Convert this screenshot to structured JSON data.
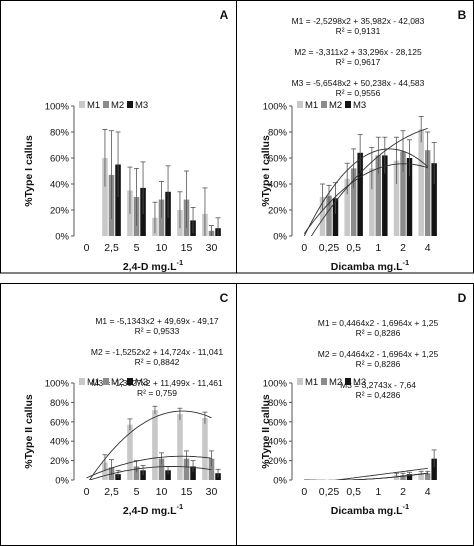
{
  "colors": {
    "M1": "#c8c8c8",
    "M2": "#8c8c8c",
    "M3": "#141414",
    "error_bar": "#555555",
    "trend": "#333333",
    "axis": "#555555",
    "frame": "#000000"
  },
  "chart_data": [
    {
      "type": "bar",
      "panel_letter": "A",
      "categories": [
        "0",
        "2,5",
        "5",
        "10",
        "15",
        "30"
      ],
      "series": [
        {
          "name": "M1",
          "values": [
            0,
            60,
            35,
            14,
            20,
            17
          ],
          "errors": [
            0,
            22,
            18,
            12,
            14,
            20
          ]
        },
        {
          "name": "M2",
          "values": [
            0,
            47,
            30,
            28,
            28,
            4
          ],
          "errors": [
            0,
            34,
            22,
            14,
            22,
            4
          ]
        },
        {
          "name": "M3",
          "values": [
            0,
            55,
            37,
            34,
            12,
            6
          ],
          "errors": [
            0,
            25,
            20,
            20,
            10,
            8
          ]
        }
      ],
      "xlabel": "2,4-D mg.L",
      "xlabel_sup": "-1",
      "ylabel": "%Type I callus",
      "ylim": [
        0,
        100
      ],
      "yticks": [
        "0%",
        "20%",
        "40%",
        "60%",
        "80%",
        "100%"
      ],
      "legend": [
        "M1",
        "M2",
        "M3"
      ],
      "legend_position": "top-left",
      "equations": [],
      "trendlines": []
    },
    {
      "type": "bar",
      "panel_letter": "B",
      "categories": [
        "0",
        "0,25",
        "0,5",
        "1",
        "2",
        "4"
      ],
      "series": [
        {
          "name": "M1",
          "values": [
            0,
            30,
            44,
            52,
            58,
            82
          ],
          "errors": [
            0,
            10,
            12,
            16,
            18,
            10
          ]
        },
        {
          "name": "M2",
          "values": [
            0,
            31,
            52,
            62,
            65,
            66
          ],
          "errors": [
            0,
            8,
            15,
            14,
            16,
            14
          ]
        },
        {
          "name": "M3",
          "values": [
            0,
            29,
            64,
            62,
            60,
            56
          ],
          "errors": [
            0,
            12,
            14,
            14,
            14,
            16
          ]
        }
      ],
      "xlabel": "Dicamba mg.L",
      "xlabel_sup": "-1",
      "ylabel": "%Type I callus",
      "ylim": [
        0,
        100
      ],
      "yticks": [
        "0%",
        "20%",
        "40%",
        "60%",
        "80%",
        "100%"
      ],
      "legend": [
        "M1",
        "M2",
        "M3"
      ],
      "legend_position": "top-left",
      "equations": [
        {
          "line1": "M1 = -2,5298x2 + 35,982x - 42,083",
          "line2": "R² = 0,9131"
        },
        {
          "line1": "M2 = -3,311x2 + 33,296x - 28,125",
          "line2": "R² = 0,9617"
        },
        {
          "line1": "M3 = -5,6548x2 + 50,238x - 44,583",
          "line2": "R² = 0,9556"
        }
      ],
      "trendlines": [
        {
          "series": "M1",
          "a": -2.5298,
          "b": 35.982,
          "c": -42.083
        },
        {
          "series": "M2",
          "a": -3.311,
          "b": 33.296,
          "c": -28.125
        },
        {
          "series": "M3",
          "a": -5.6548,
          "b": 50.238,
          "c": -44.583
        }
      ]
    },
    {
      "type": "bar",
      "panel_letter": "C",
      "categories": [
        "0",
        "2,5",
        "5",
        "10",
        "15",
        "30"
      ],
      "series": [
        {
          "name": "M1",
          "values": [
            0,
            18,
            57,
            72,
            68,
            64
          ],
          "errors": [
            0,
            8,
            6,
            4,
            6,
            6
          ]
        },
        {
          "name": "M2",
          "values": [
            0,
            13,
            14,
            22,
            22,
            22
          ],
          "errors": [
            0,
            8,
            6,
            6,
            8,
            8
          ]
        },
        {
          "name": "M3",
          "values": [
            0,
            6,
            10,
            10,
            14,
            7
          ],
          "errors": [
            0,
            4,
            5,
            4,
            6,
            4
          ]
        }
      ],
      "xlabel": "2,4-D mg.L",
      "xlabel_sup": "-1",
      "ylabel": "%Type II callus",
      "ylim": [
        0,
        100
      ],
      "yticks": [
        "0%",
        "20%",
        "40%",
        "60%",
        "80%",
        "100%"
      ],
      "legend": [
        "M1",
        "M2",
        "M3"
      ],
      "legend_position": "top-left",
      "equations": [
        {
          "line1": "M1 = -5,1343x2 + 49,69x - 49,17",
          "line2": "R² = 0,9533"
        },
        {
          "line1": "M2 = -1,5252x2 + 14,724x - 11,041",
          "line2": "R² = 0,8842"
        },
        {
          "line1": "M3 = -1,3027x2 + 11,499x - 11,461",
          "line2": "R² = 0,759"
        }
      ],
      "trendlines": [
        {
          "series": "M1",
          "a": -5.1343,
          "b": 49.69,
          "c": -49.17
        },
        {
          "series": "M2",
          "a": -1.5252,
          "b": 14.724,
          "c": -11.041
        },
        {
          "series": "M3",
          "a": -1.3027,
          "b": 11.499,
          "c": -11.461
        }
      ]
    },
    {
      "type": "bar",
      "panel_letter": "D",
      "categories": [
        "0",
        "0,25",
        "0,5",
        "1",
        "2",
        "4"
      ],
      "series": [
        {
          "name": "M1",
          "values": [
            0,
            0,
            0,
            0,
            5,
            7
          ],
          "errors": [
            0,
            0,
            0,
            0,
            2,
            2
          ]
        },
        {
          "name": "M2",
          "values": [
            0,
            0,
            0,
            0,
            5,
            7
          ],
          "errors": [
            0,
            0,
            0,
            0,
            2,
            2
          ]
        },
        {
          "name": "M3",
          "values": [
            0,
            0,
            0,
            0,
            6,
            22
          ],
          "errors": [
            0,
            0,
            0,
            0,
            2,
            9
          ]
        }
      ],
      "xlabel": "Dicamba mg.L",
      "xlabel_sup": "-1",
      "ylabel": "%Type II callus",
      "ylim": [
        0,
        100
      ],
      "yticks": [
        "0%",
        "20%",
        "40%",
        "60%",
        "80%",
        "100%"
      ],
      "legend": [
        "M1",
        "M2",
        "M3"
      ],
      "legend_position": "top-left",
      "equations": [
        {
          "line1": "M1 = 0,4464x2 - 1,6964x + 1,25",
          "line2": "R² = 0,8286"
        },
        {
          "line1": "M2 = 0,4464x2 - 1,6964x + 1,25",
          "line2": "R² = 0,8286"
        },
        {
          "line1": "M3 = 3,2743x - 7,64",
          "line2": "R² = 0,4286"
        }
      ],
      "trendlines": [
        {
          "series": "M1",
          "a": 0.4464,
          "b": -1.6964,
          "c": 1.25
        },
        {
          "series": "M2",
          "a": 0.4464,
          "b": -1.6964,
          "c": 1.25
        },
        {
          "series": "M3",
          "a": 0,
          "b": 3.2743,
          "c": -7.64
        }
      ]
    }
  ]
}
